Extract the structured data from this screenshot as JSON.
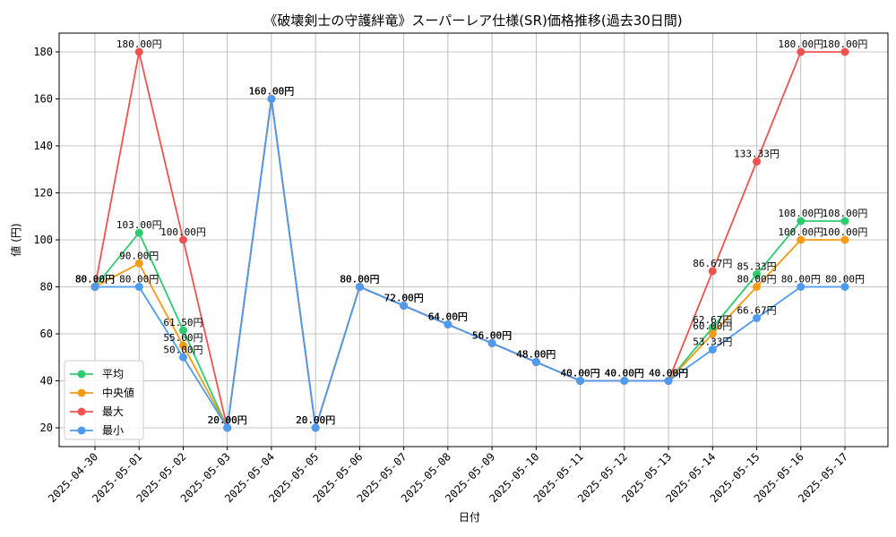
{
  "chart_data": {
    "type": "line",
    "title": "《破壊剣士の守護絆竜》スーパーレア仕様(SR)価格推移(過去30日間)",
    "xlabel": "日付",
    "ylabel": "値 (円)",
    "ylim": [
      12,
      188
    ],
    "yticks": [
      20,
      40,
      60,
      80,
      100,
      120,
      140,
      160,
      180
    ],
    "grid": true,
    "legend_position": "lower-left",
    "value_suffix": "円",
    "categories": [
      "2025-04-30",
      "2025-05-01",
      "2025-05-02",
      "2025-05-03",
      "2025-05-04",
      "2025-05-05",
      "2025-05-06",
      "2025-05-07",
      "2025-05-08",
      "2025-05-09",
      "2025-05-10",
      "2025-05-11",
      "2025-05-12",
      "2025-05-13",
      "2025-05-14",
      "2025-05-15",
      "2025-05-16",
      "2025-05-17"
    ],
    "series": [
      {
        "name": "平均",
        "color": "#2ecc71",
        "values": [
          80,
          103,
          61.5,
          20,
          160,
          20,
          80,
          72,
          64,
          56,
          48,
          40,
          40,
          40,
          62.67,
          85.33,
          108,
          108
        ]
      },
      {
        "name": "中央値",
        "color": "#f39c12",
        "values": [
          80,
          90,
          55,
          20,
          160,
          20,
          80,
          72,
          64,
          56,
          48,
          40,
          40,
          40,
          60,
          80,
          100,
          100
        ]
      },
      {
        "name": "最大",
        "color": "#ef5350",
        "values": [
          80,
          180,
          100,
          20,
          160,
          20,
          80,
          72,
          64,
          56,
          48,
          40,
          40,
          40,
          86.67,
          133.33,
          180,
          180
        ]
      },
      {
        "name": "最小",
        "color": "#4e9af1",
        "values": [
          80,
          80,
          50,
          20,
          160,
          20,
          80,
          72,
          64,
          56,
          48,
          40,
          40,
          40,
          53.33,
          66.67,
          80,
          80
        ]
      }
    ]
  }
}
